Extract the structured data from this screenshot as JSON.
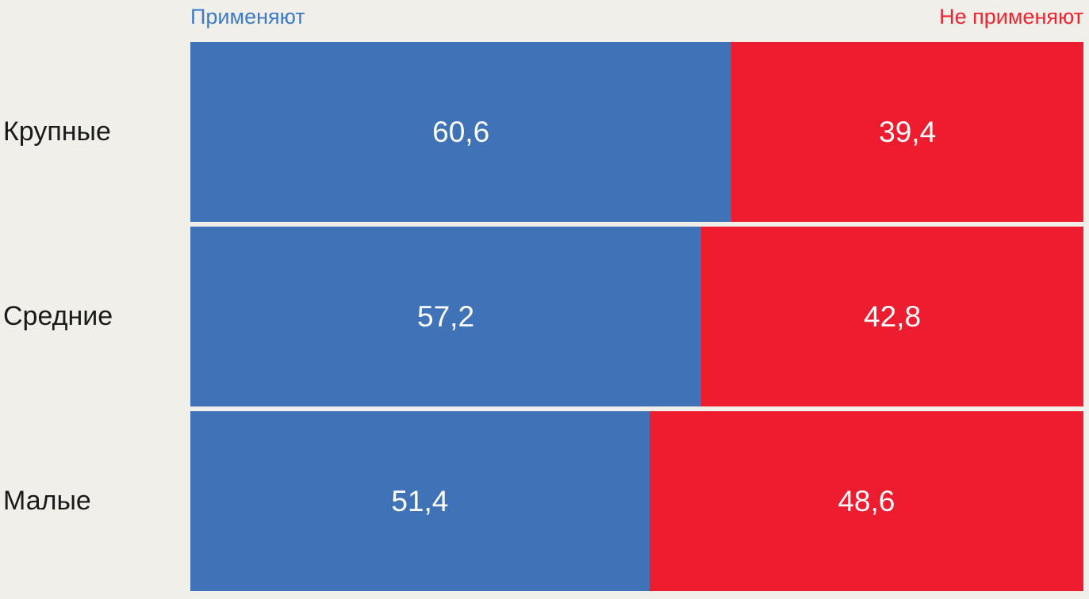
{
  "legend": {
    "left": "Применяют",
    "right": "Не применяют"
  },
  "colors": {
    "background": "#F0EFE9",
    "bar_blue": "#4072B8",
    "bar_red": "#ED1C2E",
    "legend_blue_text": "#3D7BC8",
    "legend_red_text": "#F2232E",
    "category_text": "#1B1B1B",
    "value_text": "#FFFFFF"
  },
  "chart_data": {
    "type": "bar",
    "orientation": "horizontal",
    "stacked": true,
    "stacked_total": 100,
    "title": "",
    "xlabel": "",
    "ylabel": "",
    "grid": false,
    "legend_position": "top",
    "categories": [
      "Крупные",
      "Средние",
      "Малые"
    ],
    "series": [
      {
        "name": "Применяют",
        "color": "#4072B8",
        "values": [
          60.6,
          57.2,
          51.4
        ],
        "labels": [
          "60,6",
          "57,2",
          "51,4"
        ]
      },
      {
        "name": "Не применяют",
        "color": "#ED1C2E",
        "values": [
          39.4,
          42.8,
          48.6
        ],
        "labels": [
          "39,4",
          "42,8",
          "48,6"
        ]
      }
    ]
  }
}
